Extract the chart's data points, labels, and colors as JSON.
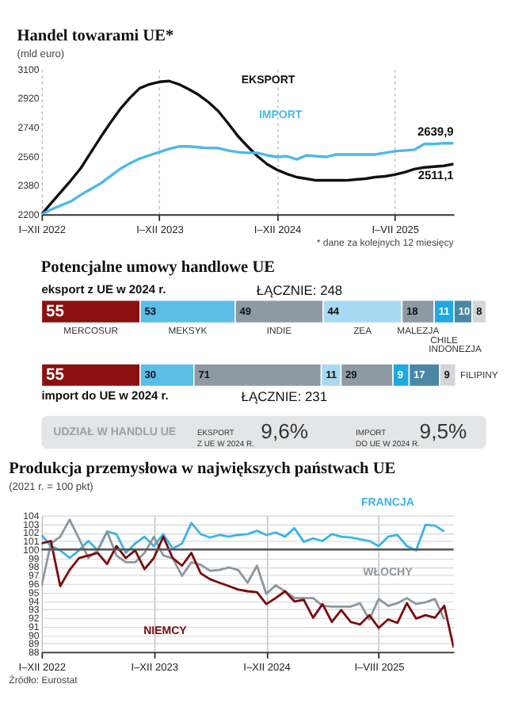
{
  "chart_data": [
    {
      "type": "line",
      "title": "Handel towarami UE*",
      "subtitle": "(mld euro)",
      "categories": [
        "I–XII 2022",
        null,
        null,
        null,
        null,
        null,
        null,
        null,
        null,
        null,
        null,
        null,
        "I–XII 2023",
        null,
        null,
        null,
        null,
        null,
        null,
        null,
        null,
        null,
        null,
        null,
        "I–XII 2024",
        null,
        null,
        null,
        null,
        null,
        null,
        null,
        null,
        null,
        null,
        null,
        "I–VII 2025",
        null,
        null,
        null,
        null,
        null,
        null
      ],
      "ylim": [
        2200,
        3100
      ],
      "yticks": [
        2200,
        2380,
        2560,
        2740,
        2920,
        3100
      ],
      "grid": "x",
      "annotations": [
        "* dane za kolejnych 12 miesięcy"
      ],
      "series": [
        {
          "name": "EKSPORT",
          "color": "#111111",
          "values": [
            2200,
            2270,
            2340,
            2410,
            2485,
            2580,
            2675,
            2765,
            2850,
            2920,
            2980,
            3005,
            3020,
            3025,
            3005,
            2975,
            2940,
            2895,
            2840,
            2765,
            2685,
            2620,
            2560,
            2510,
            2475,
            2450,
            2430,
            2420,
            2410,
            2410,
            2410,
            2410,
            2415,
            2420,
            2430,
            2435,
            2445,
            2460,
            2480,
            2490,
            2495,
            2500,
            2511.1
          ],
          "value_labels": [
            null,
            null,
            null,
            null,
            null,
            null,
            null,
            null,
            null,
            null,
            null,
            null,
            null,
            null,
            null,
            null,
            null,
            null,
            null,
            null,
            null,
            null,
            null,
            null,
            null,
            null,
            null,
            null,
            null,
            null,
            null,
            null,
            null,
            null,
            null,
            null,
            null,
            null,
            null,
            null,
            null,
            null,
            "2511,1"
          ]
        },
        {
          "name": "IMPORT",
          "color": "#4fb8e8",
          "values": [
            2200,
            2230,
            2255,
            2280,
            2320,
            2355,
            2390,
            2435,
            2480,
            2515,
            2545,
            2565,
            2585,
            2605,
            2620,
            2620,
            2615,
            2610,
            2610,
            2595,
            2585,
            2580,
            2580,
            2565,
            2555,
            2560,
            2540,
            2565,
            2560,
            2555,
            2570,
            2570,
            2570,
            2570,
            2570,
            2580,
            2590,
            2595,
            2600,
            2635,
            2635,
            2640,
            2639.9
          ],
          "value_labels": [
            null,
            null,
            null,
            null,
            null,
            null,
            null,
            null,
            null,
            null,
            null,
            null,
            null,
            null,
            null,
            null,
            null,
            null,
            null,
            null,
            null,
            null,
            null,
            null,
            null,
            null,
            null,
            null,
            null,
            null,
            null,
            null,
            null,
            null,
            null,
            null,
            null,
            null,
            null,
            null,
            null,
            null,
            "2639,9"
          ]
        }
      ]
    },
    {
      "type": "bar",
      "orientation": "horizontal",
      "stacked": true,
      "title": "Potencjalne umowy handlowe UE",
      "categories": [
        "eksport z UE w 2024 r.",
        "import do UE w 2024 r."
      ],
      "data_labels": true,
      "totals": [
        "ŁĄCZNIE: 248",
        "ŁĄCZNIE: 231"
      ],
      "series": [
        {
          "name": "MERCOSUR",
          "color": "#8b1010",
          "values": [
            55,
            55
          ]
        },
        {
          "name": "MEKSYK",
          "color": "#5cbde9",
          "values": [
            53,
            30
          ]
        },
        {
          "name": "INDIE",
          "color": "#8d9aa4",
          "values": [
            49,
            71
          ]
        },
        {
          "name": "ZEA",
          "color": "#a8d9f3",
          "values": [
            44,
            11
          ]
        },
        {
          "name": "MALEZJA",
          "color": "#8d9aa4",
          "values": [
            18,
            29
          ]
        },
        {
          "name": "CHILE",
          "color": "#1fa8e1",
          "values": [
            11,
            9
          ]
        },
        {
          "name": "INDONEZJA",
          "color": "#4b87a5",
          "values": [
            10,
            17
          ]
        },
        {
          "name": "FILIPINY",
          "color": "#d3d6d9",
          "values": [
            8,
            9
          ]
        }
      ]
    },
    {
      "type": "other",
      "title": "UDZIAŁ W HANDLU UE",
      "annotations": [
        "EKSPORT\nZ UE W 2024 R.",
        "9,6%",
        "IMPORT\nDO UE W 2024 R.",
        "9,5%"
      ]
    },
    {
      "type": "line",
      "title": "Produkcja przemysłowa w największych państwach UE",
      "subtitle": "(2021 r. = 100 pkt)",
      "categories": [
        "I–XII 2022",
        null,
        null,
        null,
        null,
        null,
        null,
        null,
        null,
        null,
        null,
        null,
        "I–XII 2023",
        null,
        null,
        null,
        null,
        null,
        null,
        null,
        null,
        null,
        null,
        null,
        "I–XII 2024",
        null,
        null,
        null,
        null,
        null,
        null,
        null,
        null,
        null,
        null,
        null,
        "I–VIII 2025",
        null,
        null,
        null,
        null,
        null,
        null,
        null,
        null
      ],
      "ylim": [
        88,
        104
      ],
      "yticks": [
        88,
        89,
        90,
        91,
        92,
        93,
        94,
        95,
        96,
        97,
        98,
        99,
        100,
        101,
        102,
        103,
        104
      ],
      "grid": true,
      "ref_lines": [
        {
          "axis": "y",
          "value": 100,
          "color": "#555555"
        }
      ],
      "annotations": [
        "Źródło: Eurostat"
      ],
      "series": [
        {
          "name": "FRANCJA",
          "color": "#3cb4e5",
          "values": [
            101.7,
            100.4,
            99.9,
            99.0,
            99.9,
            101.0,
            99.9,
            102.1,
            101.8,
            99.6,
            100.7,
            101.5,
            100.4,
            101.8,
            100.1,
            100.7,
            103.1,
            101.8,
            101.4,
            101.7,
            101.5,
            101.7,
            101.8,
            102.2,
            101.7,
            102.0,
            101.5,
            102.5,
            100.9,
            101.3,
            101.0,
            101.8,
            101.5,
            101.4,
            101.2,
            101.0,
            100.4,
            101.5,
            101.7,
            100.4,
            99.9,
            102.9,
            102.8,
            102.1,
            null
          ]
        },
        {
          "name": "WŁOCHY",
          "color": "#8c979f",
          "values": [
            95.7,
            100.7,
            101.5,
            103.5,
            101.3,
            99.0,
            99.9,
            102.1,
            99.3,
            98.5,
            98.5,
            99.6,
            101.5,
            99.3,
            99.0,
            96.9,
            98.5,
            98.2,
            97.5,
            97.6,
            97.9,
            97.6,
            96.1,
            98.1,
            94.8,
            95.8,
            95.1,
            94.3,
            94.3,
            94.3,
            93.4,
            93.3,
            93.3,
            93.3,
            93.7,
            91.8,
            94.2,
            93.4,
            93.7,
            94.3,
            93.6,
            93.8,
            94.2,
            91.8,
            null
          ]
        },
        {
          "name": "NIEMCY",
          "color": "#7a0c0c",
          "values": [
            100.7,
            101.0,
            95.7,
            97.6,
            99.0,
            99.3,
            99.6,
            98.3,
            100.4,
            99.0,
            99.9,
            97.7,
            99.0,
            101.5,
            99.0,
            98.1,
            99.6,
            97.2,
            96.5,
            96.1,
            95.7,
            95.3,
            95.1,
            95.0,
            93.6,
            94.3,
            95.1,
            93.9,
            94.1,
            92.0,
            93.6,
            91.5,
            92.9,
            91.5,
            91.2,
            92.3,
            90.8,
            91.8,
            91.4,
            93.7,
            91.9,
            92.3,
            92.0,
            93.4,
            88.5
          ]
        }
      ]
    }
  ]
}
